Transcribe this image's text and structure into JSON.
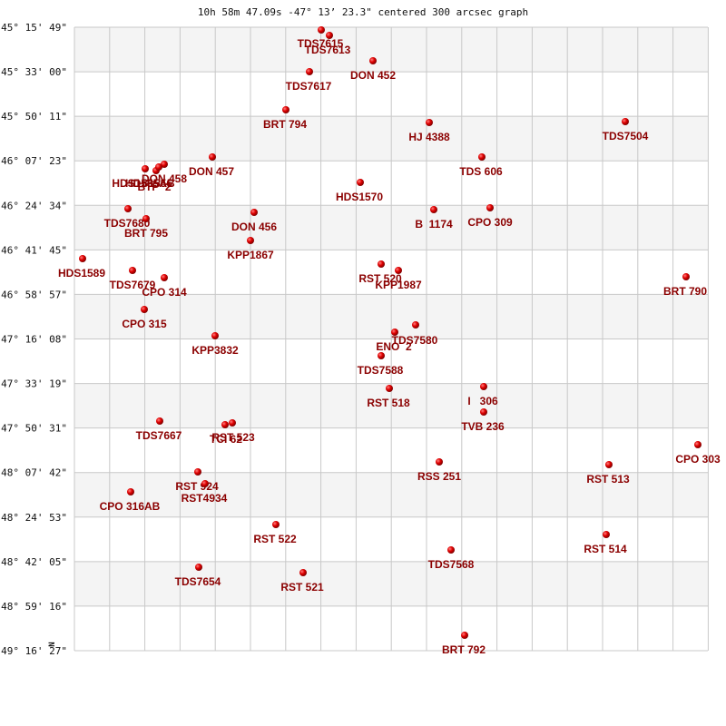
{
  "title": "10h 58m 47.09s -47° 13’ 23.3\" centered 300 arcsec graph",
  "compass": "N",
  "y_axis": {
    "labels": [
      "-45° 15' 49\"",
      "-45° 33' 00\"",
      "-45° 50' 11\"",
      "-46° 07' 23\"",
      "-46° 24' 34\"",
      "-46° 41' 45\"",
      "-46° 58' 57\"",
      "-47° 16' 08\"",
      "-47° 33' 19\"",
      "-47° 50' 31\"",
      "-48° 07' 42\"",
      "-48° 24' 53\"",
      "-48° 42' 05\"",
      "-48° 59' 16\"",
      "-49° 16' 27\""
    ]
  },
  "stars": [
    {
      "label": "TDS7615"
    },
    {
      "label": "TDS7613"
    },
    {
      "label": "DON 452"
    },
    {
      "label": "TDS7617"
    },
    {
      "label": "BRT 794"
    },
    {
      "label": "HJ 4388"
    },
    {
      "label": "TDS7504"
    },
    {
      "label": "TDS 606"
    },
    {
      "label": "DON 457"
    },
    {
      "label": "DON 458"
    },
    {
      "label": "HDS1555AB"
    },
    {
      "label": "HDS1556"
    },
    {
      "label": "BTP  2"
    },
    {
      "label": "HDS1570"
    },
    {
      "label": "B  1174"
    },
    {
      "label": "CPO 309"
    },
    {
      "label": "TDS7680"
    },
    {
      "label": "DON 456"
    },
    {
      "label": "BRT 795"
    },
    {
      "label": "KPP1867"
    },
    {
      "label": "HDS1589"
    },
    {
      "label": "RST 520"
    },
    {
      "label": "KPP1987"
    },
    {
      "label": "TDS7679"
    },
    {
      "label": "CPO 314"
    },
    {
      "label": "BRT 790"
    },
    {
      "label": "CPO 315"
    },
    {
      "label": "TDS7580"
    },
    {
      "label": "ENO  2"
    },
    {
      "label": "KPP3832"
    },
    {
      "label": "TDS7588"
    },
    {
      "label": "RST 518"
    },
    {
      "label": "I   306"
    },
    {
      "label": "TVB 236"
    },
    {
      "label": "TDS7667"
    },
    {
      "label": "TCI 62"
    },
    {
      "label": "RST 523"
    },
    {
      "label": "CPO 303"
    },
    {
      "label": "RSS 251"
    },
    {
      "label": "RST 513"
    },
    {
      "label": "RST 924"
    },
    {
      "label": "RST4934"
    },
    {
      "label": "CPO 316AB"
    },
    {
      "label": "RST 522"
    },
    {
      "label": "RST 514"
    },
    {
      "label": "TDS7568"
    },
    {
      "label": "TDS7654"
    },
    {
      "label": "RST 521"
    },
    {
      "label": "BRT 792"
    }
  ]
}
